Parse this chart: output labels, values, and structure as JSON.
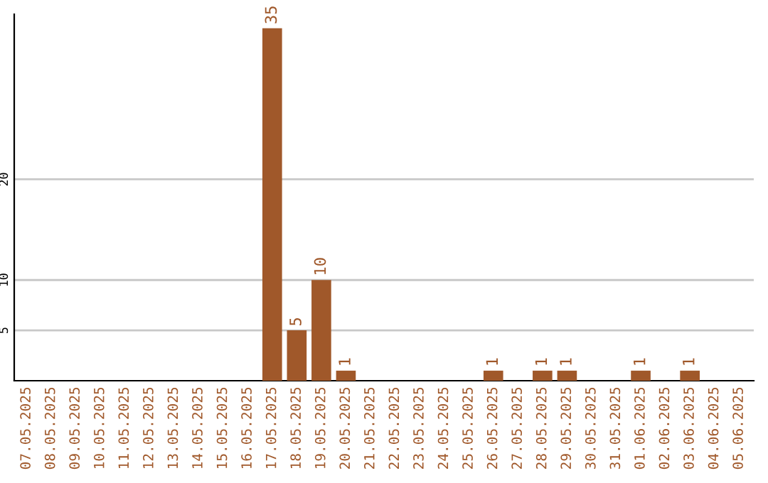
{
  "chart_data": {
    "type": "bar",
    "categories": [
      "07.05.2025",
      "08.05.2025",
      "09.05.2025",
      "10.05.2025",
      "11.05.2025",
      "12.05.2025",
      "13.05.2025",
      "14.05.2025",
      "15.05.2025",
      "16.05.2025",
      "17.05.2025",
      "18.05.2025",
      "19.05.2025",
      "20.05.2025",
      "21.05.2025",
      "22.05.2025",
      "23.05.2025",
      "24.05.2025",
      "25.05.2025",
      "26.05.2025",
      "27.05.2025",
      "28.05.2025",
      "29.05.2025",
      "30.05.2025",
      "31.05.2025",
      "01.06.2025",
      "02.06.2025",
      "03.06.2025",
      "04.06.2025",
      "05.06.2025"
    ],
    "values": [
      0,
      0,
      0,
      0,
      0,
      0,
      0,
      0,
      0,
      0,
      35,
      5,
      10,
      1,
      0,
      0,
      0,
      0,
      0,
      1,
      0,
      1,
      1,
      0,
      0,
      1,
      0,
      1,
      0,
      0
    ],
    "value_labels": [
      null,
      null,
      null,
      null,
      null,
      null,
      null,
      null,
      null,
      null,
      "35",
      "5",
      "10",
      "1",
      null,
      null,
      null,
      null,
      null,
      "1",
      null,
      "1",
      "1",
      null,
      null,
      "1",
      null,
      "1",
      null,
      null
    ],
    "color": "#a0582a",
    "ylim": [
      0,
      36.4
    ],
    "yticks": [
      5,
      10,
      20
    ],
    "grid": "y"
  }
}
